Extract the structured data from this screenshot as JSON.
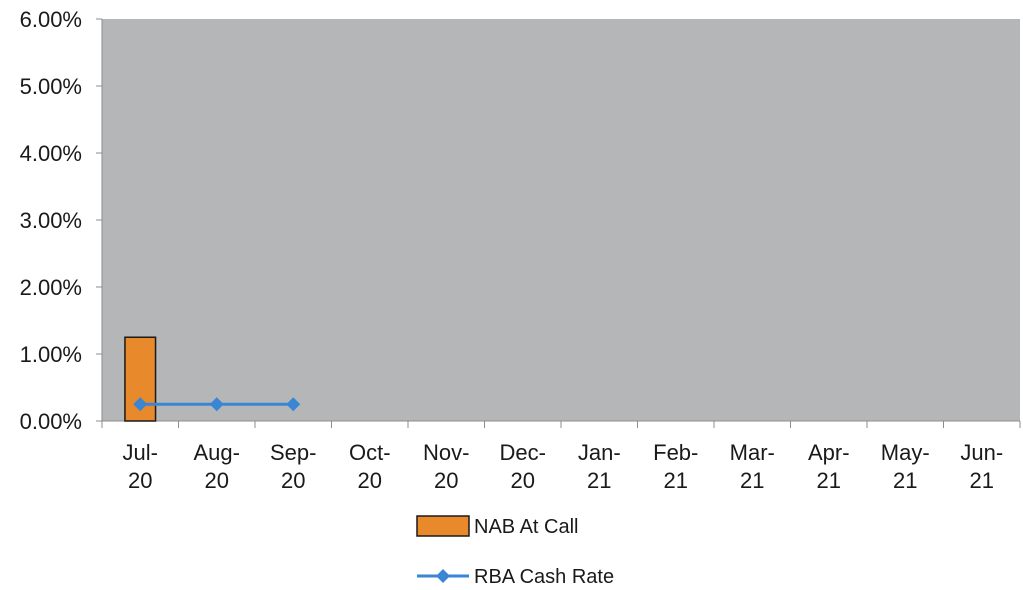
{
  "chart_data": {
    "type": "bar",
    "categories": [
      [
        "Jul-",
        "20"
      ],
      [
        "Aug-",
        "20"
      ],
      [
        "Sep-",
        "20"
      ],
      [
        "Oct-",
        "20"
      ],
      [
        "Nov-",
        "20"
      ],
      [
        "Dec-",
        "20"
      ],
      [
        "Jan-",
        "21"
      ],
      [
        "Feb-",
        "21"
      ],
      [
        "Mar-",
        "21"
      ],
      [
        "Apr-",
        "21"
      ],
      [
        "May-",
        "21"
      ],
      [
        "Jun-",
        "21"
      ]
    ],
    "series": [
      {
        "name": "NAB At Call",
        "type": "bar",
        "color": "#e8892c",
        "values": [
          1.25,
          null,
          null,
          null,
          null,
          null,
          null,
          null,
          null,
          null,
          null,
          null
        ]
      },
      {
        "name": "RBA Cash Rate",
        "type": "line",
        "color": "#3a86d4",
        "marker": "diamond",
        "values": [
          0.25,
          0.25,
          0.25,
          null,
          null,
          null,
          null,
          null,
          null,
          null,
          null,
          null
        ]
      }
    ],
    "ylim": [
      0,
      6
    ],
    "yticks": [
      "0.00%",
      "1.00%",
      "2.00%",
      "3.00%",
      "4.00%",
      "5.00%",
      "6.00%"
    ],
    "plot_background": "#b4b6b7",
    "grid": false,
    "legend_position": "bottom"
  }
}
